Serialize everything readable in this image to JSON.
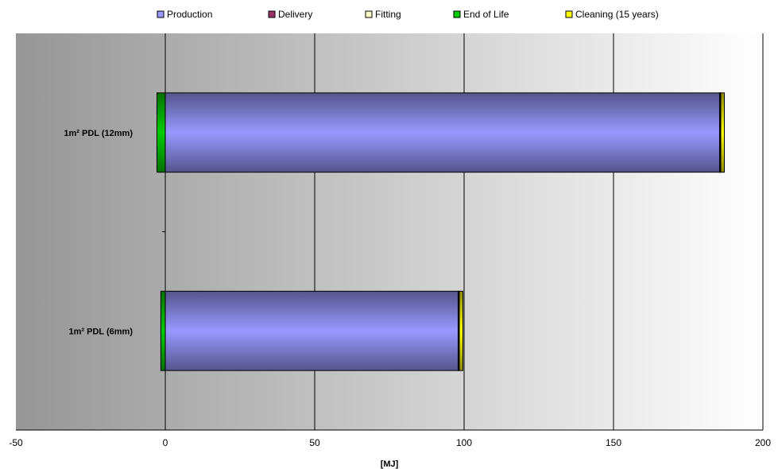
{
  "chart_data": {
    "type": "bar",
    "orientation": "horizontal",
    "stacked": true,
    "categories": [
      "1m² PDL (12mm)",
      "1m² PDL (6mm)"
    ],
    "series": [
      {
        "name": "Production",
        "color": "#9999ff",
        "values": [
          185.5,
          98.0
        ]
      },
      {
        "name": "Delivery",
        "color": "#993366",
        "values": [
          0.2,
          0.2
        ]
      },
      {
        "name": "Fitting",
        "color": "#ffffcc",
        "values": [
          0.2,
          0.2
        ]
      },
      {
        "name": "End of Life",
        "color": "#00cc00",
        "values": [
          -2.8,
          -1.5
        ]
      },
      {
        "name": "Cleaning (15 years)",
        "color": "#ffff00",
        "values": [
          1.2,
          1.2
        ]
      }
    ],
    "xlabel": "[MJ]",
    "xlim": [
      -50,
      200
    ],
    "xticks": [
      -50,
      0,
      50,
      100,
      150,
      200
    ],
    "grid": true,
    "legend_position": "top"
  }
}
